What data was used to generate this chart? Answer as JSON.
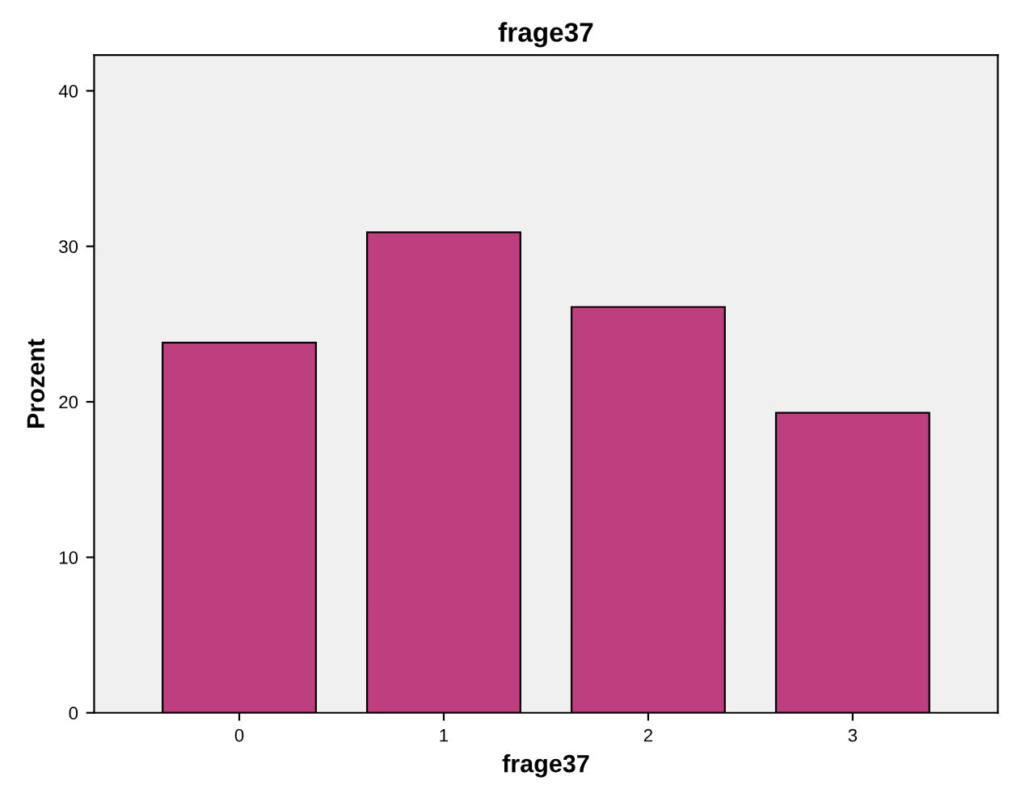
{
  "chart_data": {
    "type": "bar",
    "title": "frage37",
    "xlabel": "frage37",
    "ylabel": "Prozent",
    "categories": [
      "0",
      "1",
      "2",
      "3"
    ],
    "values": [
      23.8,
      30.9,
      26.1,
      19.3
    ],
    "color": "#be3f7f",
    "ylim": [
      0,
      42.3
    ],
    "yticks": [
      0,
      10,
      20,
      30,
      40
    ],
    "grid": false
  }
}
